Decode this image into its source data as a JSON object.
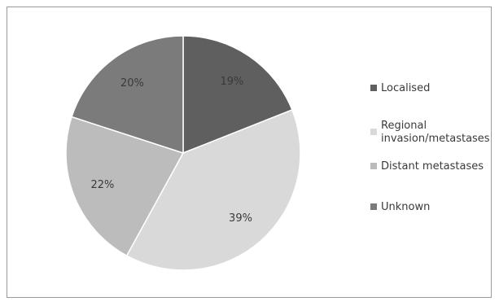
{
  "chart_data": {
    "type": "pie",
    "slices": [
      {
        "label": "Localised",
        "value": 19,
        "display": "19%",
        "color": "#5f5f5f"
      },
      {
        "label": "Regional invasion/metastases",
        "value": 39,
        "display": "39%",
        "color": "#d9d9d9"
      },
      {
        "label": "Distant metastases",
        "value": 22,
        "display": "22%",
        "color": "#bcbcbc"
      },
      {
        "label": "Unknown",
        "value": 20,
        "display": "20%",
        "color": "#7b7b7b"
      }
    ],
    "legend": [
      {
        "lines": [
          "Localised"
        ],
        "color": "#5f5f5f"
      },
      {
        "lines": [
          "Regional",
          "invasion/metastases"
        ],
        "color": "#d9d9d9"
      },
      {
        "lines": [
          "Distant metastases"
        ],
        "color": "#bcbcbc"
      },
      {
        "lines": [
          "Unknown"
        ],
        "color": "#7b7b7b"
      }
    ],
    "legend_position": "right"
  }
}
